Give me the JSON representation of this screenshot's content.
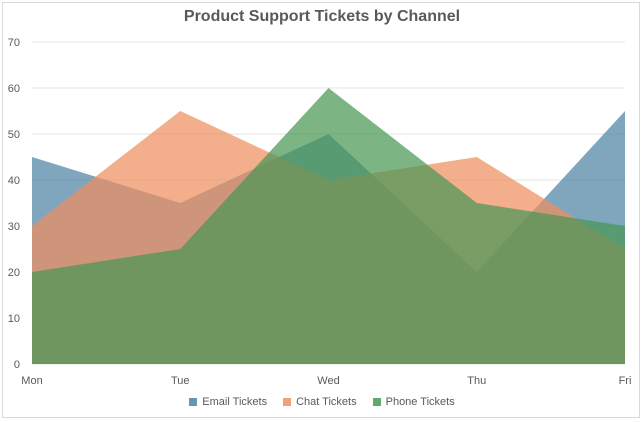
{
  "chart_data": {
    "type": "area",
    "title": "Product Support Tickets by Channel",
    "categories": [
      "Mon",
      "Tue",
      "Wed",
      "Thu",
      "Fri"
    ],
    "ylim": [
      0,
      70
    ],
    "yticks": [
      0,
      10,
      20,
      30,
      40,
      50,
      60,
      70
    ],
    "grid": true,
    "legend_position": "bottom",
    "series": [
      {
        "name": "Email Tickets",
        "values": [
          45,
          35,
          50,
          20,
          55
        ],
        "color": "#4e84a3"
      },
      {
        "name": "Chat Tickets",
        "values": [
          30,
          55,
          40,
          45,
          25
        ],
        "color": "#ee8f5f"
      },
      {
        "name": "Phone Tickets",
        "values": [
          20,
          25,
          60,
          35,
          30
        ],
        "color": "#4a9754"
      }
    ]
  }
}
